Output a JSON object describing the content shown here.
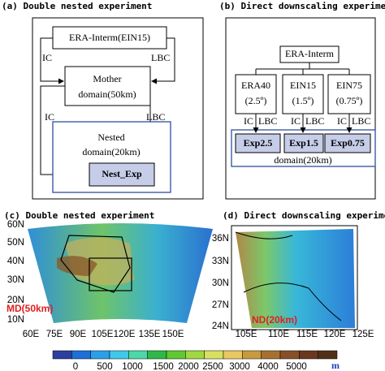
{
  "panel_a": {
    "title": "(a) Double nested experiment",
    "source": "ERA-Interm(EIN15)",
    "ic_1": "IC",
    "lbc_1": "LBC",
    "mother_1": "Mother",
    "mother_2": "domain(50km)",
    "ic_2": "IC",
    "lbc_2": "LBC",
    "nested_1": "Nested",
    "nested_2": "domain(20km)",
    "exp": "Nest_Exp"
  },
  "panel_b": {
    "title": "(b) Direct downscaling experiment",
    "source": "ERA-Interm",
    "inputs": [
      {
        "name": "ERA40",
        "res": "(2.5º)",
        "exp": "Exp2.5"
      },
      {
        "name": "EIN15",
        "res": "(1.5º)",
        "exp": "Exp1.5"
      },
      {
        "name": "EIN75",
        "res": "(0.75º)",
        "exp": "Exp0.75"
      }
    ],
    "ic": "IC",
    "lbc": "LBC",
    "domain": "domain(20km)"
  },
  "panel_c": {
    "title": "(c) Double nested experiment",
    "label": "MD(50km)",
    "lat_labels": [
      "60N",
      "50N",
      "40N",
      "30N",
      "20N",
      "10N"
    ],
    "lon_labels": [
      "60E",
      "75E",
      "90E",
      "105E",
      "120E",
      "135E",
      "150E"
    ]
  },
  "panel_d": {
    "title": "(d) Direct downscaling experiment",
    "label": "ND(20km)",
    "lat_labels": [
      "36N",
      "33N",
      "30N",
      "27N",
      "24N"
    ],
    "lon_labels": [
      "105E",
      "110E",
      "115E",
      "120E",
      "125E"
    ]
  },
  "colorbar": {
    "labels": [
      "0",
      "500",
      "1000",
      "1500",
      "2000",
      "2500",
      "3000",
      "4000",
      "5000"
    ],
    "unit": "m"
  }
}
